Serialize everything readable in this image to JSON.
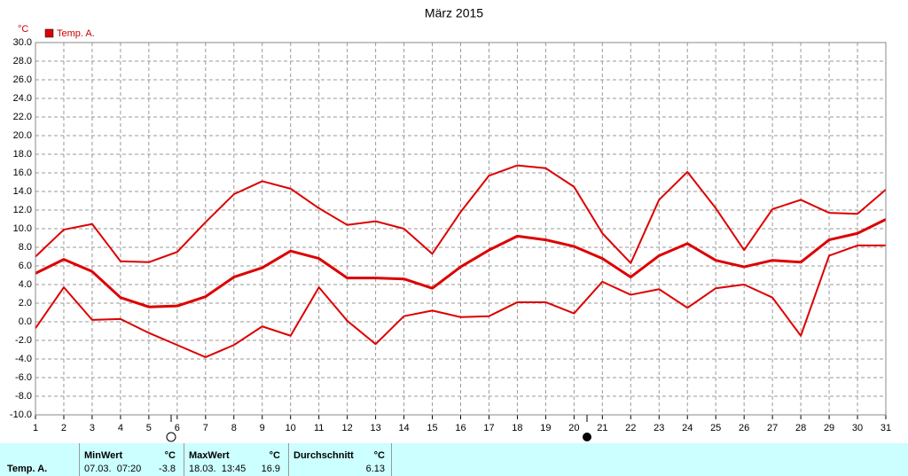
{
  "chart_data": {
    "type": "line",
    "title": "März 2015",
    "y_label": "°C",
    "legend": "Temp. A.",
    "color": "#dd0000",
    "x": [
      1,
      2,
      3,
      4,
      5,
      6,
      7,
      8,
      9,
      10,
      11,
      12,
      13,
      14,
      15,
      16,
      17,
      18,
      19,
      20,
      21,
      22,
      23,
      24,
      25,
      26,
      27,
      28,
      29,
      30,
      31
    ],
    "xlim": [
      1,
      31
    ],
    "xticks": [
      1,
      2,
      3,
      4,
      5,
      6,
      7,
      8,
      9,
      10,
      11,
      12,
      13,
      14,
      15,
      16,
      17,
      18,
      19,
      20,
      21,
      22,
      23,
      24,
      25,
      26,
      27,
      28,
      29,
      30,
      31
    ],
    "ylim": [
      -10,
      30
    ],
    "yticks": [
      {
        "value": -10,
        "label": "-10.0"
      },
      {
        "value": -8,
        "label": "-8.0"
      },
      {
        "value": -6,
        "label": "-6.0"
      },
      {
        "value": -4,
        "label": "-4.0"
      },
      {
        "value": -2,
        "label": "-2.0"
      },
      {
        "value": 0,
        "label": "0.0"
      },
      {
        "value": 2,
        "label": "2.0"
      },
      {
        "value": 4,
        "label": "4.0"
      },
      {
        "value": 6,
        "label": "6.0"
      },
      {
        "value": 8,
        "label": "8.0"
      },
      {
        "value": 10,
        "label": "10.0"
      },
      {
        "value": 12,
        "label": "12.0"
      },
      {
        "value": 14,
        "label": "14.0"
      },
      {
        "value": 16,
        "label": "16.0"
      },
      {
        "value": 18,
        "label": "18.0"
      },
      {
        "value": 20,
        "label": "20.0"
      },
      {
        "value": 22,
        "label": "22.0"
      },
      {
        "value": 24,
        "label": "24.0"
      },
      {
        "value": 26,
        "label": "26.0"
      },
      {
        "value": 28,
        "label": "28.0"
      },
      {
        "value": 30,
        "label": "30.0"
      }
    ],
    "grid": true,
    "series": [
      {
        "color": "#dd0000",
        "width": 2,
        "values": [
          7.0,
          9.9,
          10.5,
          6.5,
          6.4,
          7.5,
          10.7,
          13.7,
          15.1,
          14.3,
          12.2,
          10.4,
          10.8,
          10.0,
          7.3,
          11.8,
          15.7,
          16.8,
          16.5,
          14.5,
          9.5,
          6.3,
          13.1,
          16.1,
          12.2,
          7.7,
          12.1,
          13.1,
          11.7,
          11.6,
          14.2
        ]
      },
      {
        "color": "#dd0000",
        "width": 3,
        "values": [
          5.2,
          6.7,
          5.4,
          2.6,
          1.6,
          1.7,
          2.7,
          4.8,
          5.8,
          7.6,
          6.8,
          4.7,
          4.7,
          4.6,
          3.6,
          5.9,
          7.7,
          9.2,
          8.8,
          8.1,
          6.8,
          4.8,
          7.1,
          8.4,
          6.6,
          5.9,
          6.6,
          6.4,
          8.8,
          9.5,
          11.0
        ]
      },
      {
        "color": "#dd0000",
        "width": 2,
        "values": [
          -0.7,
          3.7,
          0.2,
          0.3,
          -1.2,
          -2.5,
          -3.8,
          -2.5,
          -0.5,
          -1.5,
          3.7,
          0.1,
          -2.4,
          0.6,
          1.2,
          0.5,
          0.6,
          2.1,
          2.1,
          0.9,
          4.3,
          2.9,
          3.5,
          1.5,
          3.6,
          4.0,
          2.6,
          -1.5,
          7.1,
          8.2,
          8.2
        ]
      }
    ]
  },
  "summary": {
    "row_label": "Temp. A.",
    "min": {
      "header": "MinWert",
      "unit": "°C",
      "time": "07.03.  07:20",
      "value": "-3.8"
    },
    "max": {
      "header": "MaxWert",
      "unit": "°C",
      "time": "18.03.  13:45",
      "value": "16.9"
    },
    "avg": {
      "header": "Durchschnitt",
      "unit": "°C",
      "value": "6.13"
    }
  }
}
